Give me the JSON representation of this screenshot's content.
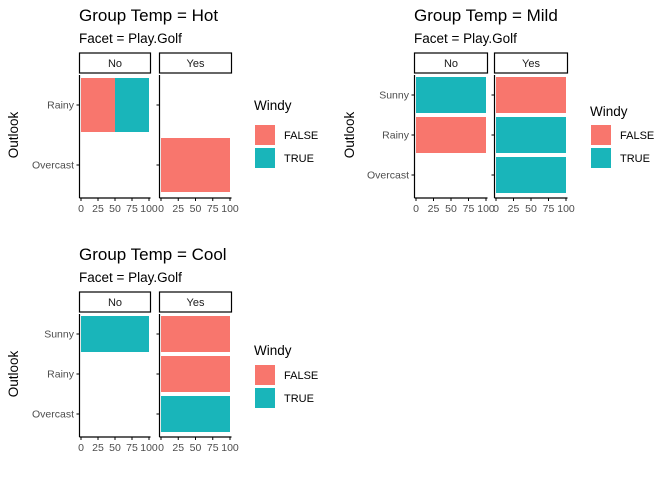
{
  "colors": {
    "FALSE": "#F8766D",
    "TRUE": "#19B5BA",
    "axis": "#000000",
    "tick_text": "#4D4D4D"
  },
  "chart_data": [
    {
      "type": "bar",
      "orientation": "horizontal",
      "stacked": true,
      "title": "Group Temp  = Hot",
      "subtitle": "Facet =  Play.Golf",
      "ylabel": "Outlook",
      "xlabel": "",
      "xlim": [
        0,
        100
      ],
      "x_ticks": [
        "0",
        "25",
        "50",
        "75",
        "100"
      ],
      "categories": [
        "Rainy",
        "Overcast"
      ],
      "facets": [
        "No",
        "Yes"
      ],
      "legend": {
        "title": "Windy",
        "position": "right",
        "entries": [
          "FALSE",
          "TRUE"
        ]
      },
      "series": [
        {
          "name": "FALSE",
          "values": {
            "No": [
              50,
              0
            ],
            "Yes": [
              0,
              100
            ]
          }
        },
        {
          "name": "TRUE",
          "values": {
            "No": [
              50,
              0
            ],
            "Yes": [
              0,
              0
            ]
          }
        }
      ]
    },
    {
      "type": "bar",
      "orientation": "horizontal",
      "stacked": true,
      "title": "Group Temp  = Mild",
      "subtitle": "Facet =  Play.Golf",
      "ylabel": "Outlook",
      "xlabel": "",
      "xlim": [
        0,
        100
      ],
      "x_ticks": [
        "0",
        "25",
        "50",
        "75",
        "100"
      ],
      "categories": [
        "Sunny",
        "Rainy",
        "Overcast"
      ],
      "facets": [
        "No",
        "Yes"
      ],
      "legend": {
        "title": "Windy",
        "position": "right",
        "entries": [
          "FALSE",
          "TRUE"
        ]
      },
      "series": [
        {
          "name": "FALSE",
          "values": {
            "No": [
              0,
              100,
              0
            ],
            "Yes": [
              100,
              0,
              0
            ]
          }
        },
        {
          "name": "TRUE",
          "values": {
            "No": [
              100,
              0,
              0
            ],
            "Yes": [
              0,
              100,
              100
            ]
          }
        }
      ]
    },
    {
      "type": "bar",
      "orientation": "horizontal",
      "stacked": true,
      "title": "Group Temp  = Cool",
      "subtitle": "Facet =  Play.Golf",
      "ylabel": "Outlook",
      "xlabel": "",
      "xlim": [
        0,
        100
      ],
      "x_ticks": [
        "0",
        "25",
        "50",
        "75",
        "100"
      ],
      "categories": [
        "Sunny",
        "Rainy",
        "Overcast"
      ],
      "facets": [
        "No",
        "Yes"
      ],
      "legend": {
        "title": "Windy",
        "position": "right",
        "entries": [
          "FALSE",
          "TRUE"
        ]
      },
      "series": [
        {
          "name": "FALSE",
          "values": {
            "No": [
              0,
              0,
              0
            ],
            "Yes": [
              100,
              100,
              0
            ]
          }
        },
        {
          "name": "TRUE",
          "values": {
            "No": [
              100,
              0,
              0
            ],
            "Yes": [
              0,
              0,
              100
            ]
          }
        }
      ]
    }
  ]
}
